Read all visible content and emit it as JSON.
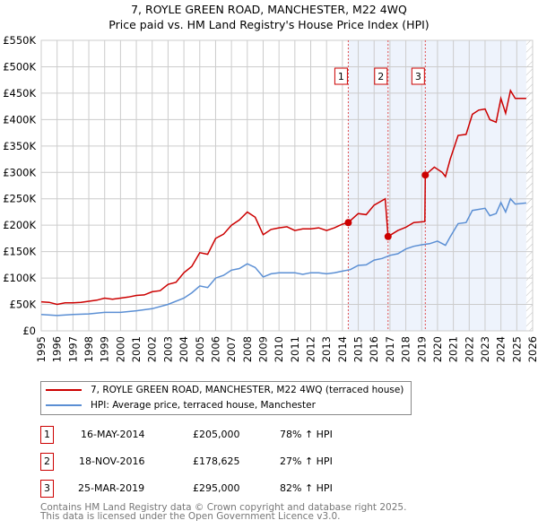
{
  "title_line1": "7, ROYLE GREEN ROAD, MANCHESTER, M22 4WQ",
  "title_line2": "Price paid vs. HM Land Registry's House Price Index (HPI)",
  "legend": [
    {
      "label": "7, ROYLE GREEN ROAD, MANCHESTER, M22 4WQ (terraced house)",
      "color": "#cc0000"
    },
    {
      "label": "HPI: Average price, terraced house, Manchester",
      "color": "#5b8fd4"
    }
  ],
  "sales": [
    {
      "num": "1",
      "date": "16-MAY-2014",
      "price": "£205,000",
      "hpi": "78% ↑ HPI"
    },
    {
      "num": "2",
      "date": "18-NOV-2016",
      "price": "£178,625",
      "hpi": "27% ↑ HPI"
    },
    {
      "num": "3",
      "date": "25-MAR-2019",
      "price": "£295,000",
      "hpi": "82% ↑ HPI"
    }
  ],
  "footer_line1": "Contains HM Land Registry data © Crown copyright and database right 2025.",
  "footer_line2": "This data is licensed under the Open Government Licence v3.0.",
  "chart_data": {
    "type": "line",
    "xlim": [
      1995,
      2026
    ],
    "ylim": [
      0,
      550000
    ],
    "yticks": [
      0,
      50000,
      100000,
      150000,
      200000,
      250000,
      300000,
      350000,
      400000,
      450000,
      500000,
      550000
    ],
    "ytick_labels": [
      "£0",
      "£50K",
      "£100K",
      "£150K",
      "£200K",
      "£250K",
      "£300K",
      "£350K",
      "£400K",
      "£450K",
      "£500K",
      "£550K"
    ],
    "xticks": [
      1995,
      1996,
      1997,
      1998,
      1999,
      2000,
      2001,
      2002,
      2003,
      2004,
      2005,
      2006,
      2007,
      2008,
      2009,
      2010,
      2011,
      2012,
      2013,
      2014,
      2015,
      2016,
      2017,
      2018,
      2019,
      2020,
      2021,
      2022,
      2023,
      2024,
      2025,
      2026
    ],
    "grid": true,
    "shaded_from": 2014.37,
    "hatched_from": 2025.6,
    "markers": [
      {
        "label": "1",
        "x": 2014.37,
        "y": 205000
      },
      {
        "label": "2",
        "x": 2016.88,
        "y": 178625
      },
      {
        "label": "3",
        "x": 2019.23,
        "y": 295000
      }
    ],
    "series": [
      {
        "name": "7, ROYLE GREEN ROAD, MANCHESTER, M22 4WQ (terraced house)",
        "color": "#cc0000",
        "x": [
          1995,
          1995.5,
          1996,
          1996.5,
          1997,
          1997.5,
          1998,
          1998.5,
          1999,
          1999.5,
          2000,
          2000.5,
          2001,
          2001.5,
          2002,
          2002.5,
          2003,
          2003.5,
          2004,
          2004.5,
          2005,
          2005.5,
          2006,
          2006.5,
          2007,
          2007.5,
          2008,
          2008.5,
          2009,
          2009.5,
          2010,
          2010.5,
          2011,
          2011.5,
          2012,
          2012.5,
          2013,
          2013.5,
          2014,
          2014.37,
          2015,
          2015.5,
          2016,
          2016.7,
          2016.88,
          2017.5,
          2018,
          2018.5,
          2019.2,
          2019.23,
          2019.8,
          2020.3,
          2020.5,
          2020.8,
          2021.3,
          2021.8,
          2022.2,
          2022.6,
          2023,
          2023.3,
          2023.7,
          2024,
          2024.3,
          2024.6,
          2024.9,
          2025.6
        ],
        "y": [
          55000,
          54000,
          50000,
          53000,
          53000,
          54000,
          56000,
          58000,
          62000,
          60000,
          62000,
          64000,
          67000,
          68000,
          74000,
          76000,
          88000,
          92000,
          110000,
          122000,
          148000,
          145000,
          175000,
          183000,
          200000,
          210000,
          225000,
          215000,
          182000,
          192000,
          195000,
          197000,
          190000,
          193000,
          193000,
          195000,
          190000,
          195000,
          202000,
          205000,
          222000,
          220000,
          238000,
          250000,
          178625,
          190000,
          196000,
          205000,
          207000,
          295000,
          310000,
          300000,
          292000,
          325000,
          370000,
          372000,
          410000,
          418000,
          420000,
          400000,
          395000,
          440000,
          412000,
          455000,
          440000,
          440000
        ]
      },
      {
        "name": "HPI: Average price, terraced house, Manchester",
        "color": "#5b8fd4",
        "x": [
          1995,
          1996,
          1997,
          1998,
          1999,
          2000,
          2001,
          2002,
          2003,
          2004,
          2004.5,
          2005,
          2005.5,
          2006,
          2006.5,
          2007,
          2007.5,
          2008,
          2008.5,
          2009,
          2009.5,
          2010,
          2011,
          2011.5,
          2012,
          2012.5,
          2013,
          2013.5,
          2014,
          2014.5,
          2015,
          2015.5,
          2016,
          2016.5,
          2017,
          2017.5,
          2018,
          2018.5,
          2019,
          2019.5,
          2020,
          2020.5,
          2020.8,
          2021.3,
          2021.8,
          2022.2,
          2022.6,
          2023,
          2023.3,
          2023.7,
          2024,
          2024.3,
          2024.6,
          2024.9,
          2025.6
        ],
        "y": [
          31000,
          29000,
          31000,
          32000,
          35000,
          35000,
          38000,
          42000,
          50000,
          62000,
          72000,
          85000,
          82000,
          100000,
          105000,
          115000,
          118000,
          127000,
          120000,
          102000,
          108000,
          110000,
          110000,
          107000,
          110000,
          110000,
          108000,
          110000,
          113000,
          116000,
          124000,
          125000,
          134000,
          137000,
          143000,
          146000,
          155000,
          160000,
          163000,
          165000,
          170000,
          162000,
          178000,
          203000,
          205000,
          228000,
          230000,
          232000,
          218000,
          222000,
          243000,
          225000,
          250000,
          240000,
          242000
        ]
      }
    ]
  }
}
